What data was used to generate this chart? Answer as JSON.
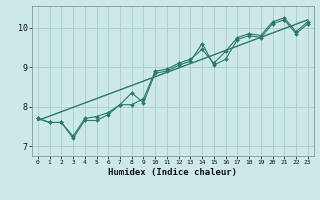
{
  "title": "",
  "xlabel": "Humidex (Indice chaleur)",
  "bg_color": "#cce8e8",
  "grid_color": "#aacccc",
  "line_color": "#2a7a6a",
  "xlim": [
    -0.5,
    23.5
  ],
  "ylim": [
    6.75,
    10.55
  ],
  "xticks": [
    0,
    1,
    2,
    3,
    4,
    5,
    6,
    7,
    8,
    9,
    10,
    11,
    12,
    13,
    14,
    15,
    16,
    17,
    18,
    19,
    20,
    21,
    22,
    23
  ],
  "yticks": [
    7,
    8,
    9,
    10
  ],
  "line1_x": [
    0,
    1,
    2,
    3,
    4,
    5,
    6,
    7,
    8,
    9,
    10,
    11,
    12,
    13,
    14,
    15,
    16,
    17,
    18,
    19,
    20,
    21,
    22,
    23
  ],
  "line1_y": [
    7.7,
    7.6,
    7.6,
    7.2,
    7.65,
    7.65,
    7.8,
    8.05,
    8.35,
    8.1,
    8.85,
    8.9,
    9.05,
    9.15,
    9.6,
    9.05,
    9.2,
    9.7,
    9.8,
    9.75,
    10.1,
    10.2,
    9.85,
    10.1
  ],
  "line2_x": [
    0,
    1,
    2,
    3,
    4,
    5,
    6,
    7,
    8,
    9,
    10,
    11,
    12,
    13,
    14,
    15,
    16,
    17,
    18,
    19,
    20,
    21,
    22,
    23
  ],
  "line2_y": [
    7.7,
    7.6,
    7.6,
    7.25,
    7.7,
    7.75,
    7.85,
    8.05,
    8.05,
    8.2,
    8.9,
    8.95,
    9.1,
    9.2,
    9.45,
    9.1,
    9.4,
    9.75,
    9.85,
    9.8,
    10.15,
    10.25,
    9.9,
    10.15
  ],
  "line3_x": [
    0,
    23
  ],
  "line3_y": [
    7.65,
    10.2
  ]
}
